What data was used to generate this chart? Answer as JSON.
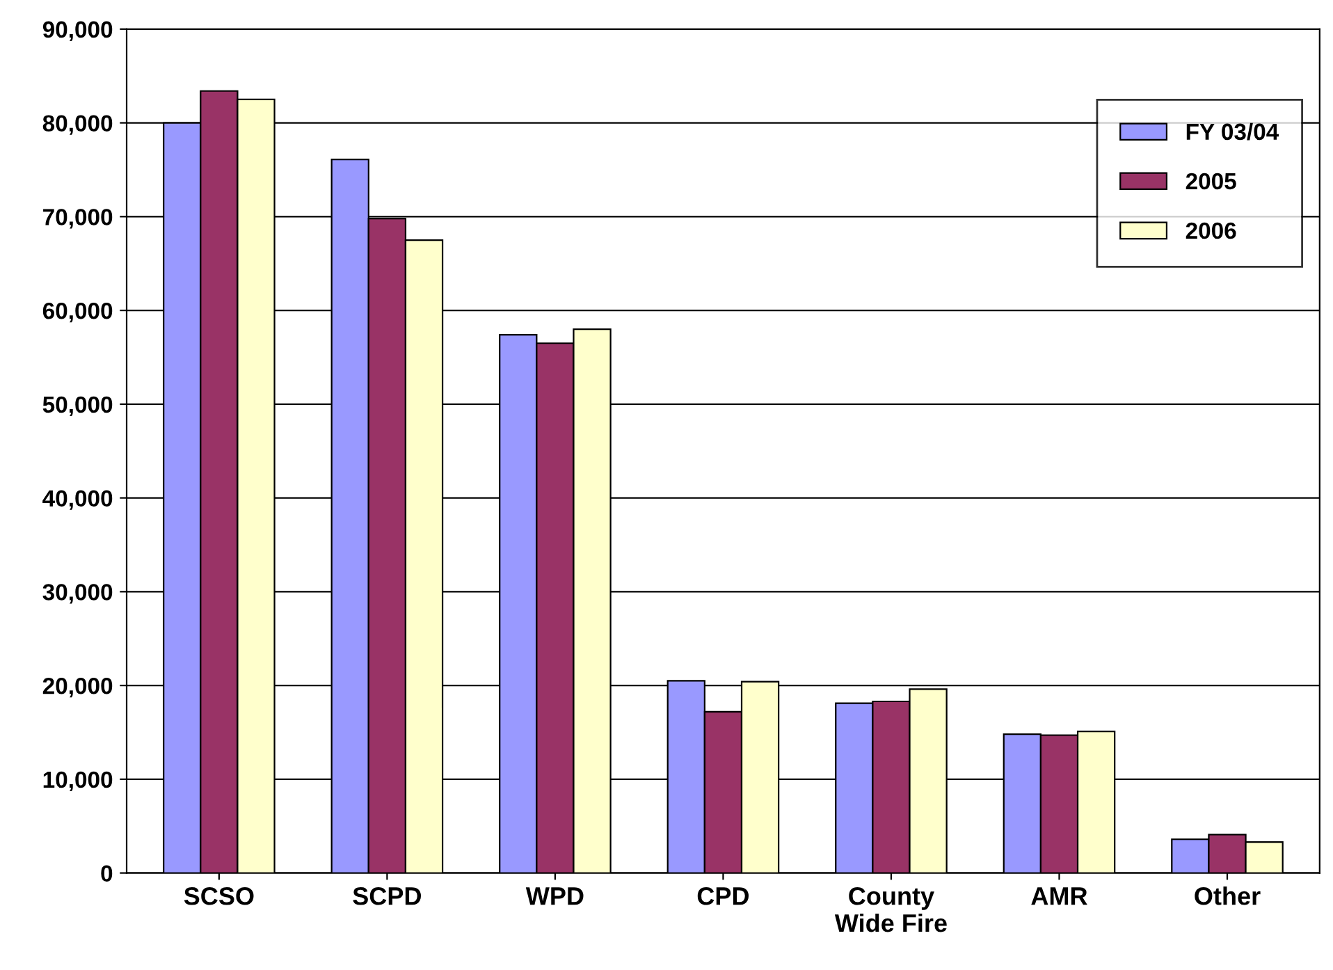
{
  "chart_data": {
    "type": "bar",
    "categories": [
      "SCSO",
      "SCPD",
      "WPD",
      "CPD",
      "County\nWide Fire",
      "AMR",
      "Other"
    ],
    "series": [
      {
        "name": "FY 03/04",
        "color": "#9999ff",
        "values": [
          80000,
          76100,
          57400,
          20500,
          18100,
          14800,
          3600
        ]
      },
      {
        "name": "2005",
        "color": "#993366",
        "values": [
          83400,
          69800,
          56500,
          17200,
          18300,
          14700,
          4100
        ]
      },
      {
        "name": "2006",
        "color": "#ffffcc",
        "values": [
          82500,
          67500,
          58000,
          20400,
          19600,
          15100,
          3300
        ]
      }
    ],
    "ylim": [
      0,
      90000
    ],
    "yticks": [
      {
        "value": 0,
        "label": "0"
      },
      {
        "value": 10000,
        "label": "10,000"
      },
      {
        "value": 20000,
        "label": "20,000"
      },
      {
        "value": 30000,
        "label": "30,000"
      },
      {
        "value": 40000,
        "label": "40,000"
      },
      {
        "value": 50000,
        "label": "50,000"
      },
      {
        "value": 60000,
        "label": "60,000"
      },
      {
        "value": 70000,
        "label": "70,000"
      },
      {
        "value": 80000,
        "label": "80,000"
      },
      {
        "value": 90000,
        "label": "90,000"
      }
    ],
    "grid": "y",
    "legend": "top right"
  }
}
